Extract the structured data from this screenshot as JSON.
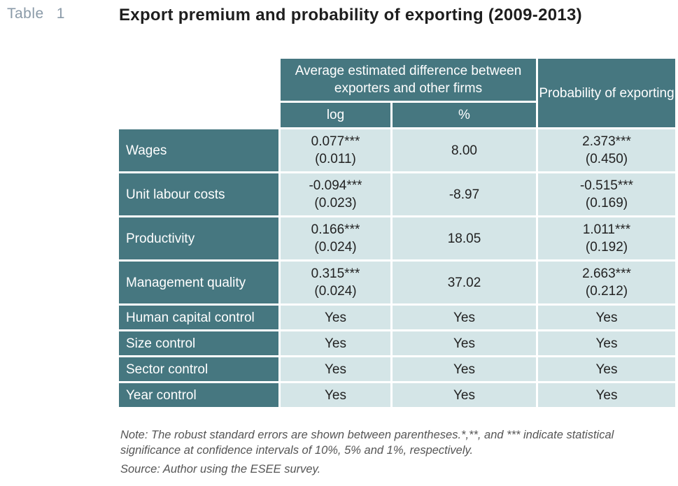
{
  "table_label": "Table",
  "table_number": "1",
  "title": "Export premium and probability of exporting (2009-2013)",
  "header": {
    "avg_diff": "Average estimated difference between exporters and other firms",
    "prob": "Probability of exporting",
    "log": "log",
    "pct": "%"
  },
  "rows": [
    {
      "label": "Wages",
      "log": "0.077***",
      "log_se": "(0.011)",
      "pct": "8.00",
      "prob": "2.373***",
      "prob_se": "(0.450)"
    },
    {
      "label": "Unit labour costs",
      "log": "-0.094***",
      "log_se": "(0.023)",
      "pct": "-8.97",
      "prob": "-0.515***",
      "prob_se": "(0.169)"
    },
    {
      "label": "Productivity",
      "log": "0.166***",
      "log_se": "(0.024)",
      "pct": "18.05",
      "prob": "1.011***",
      "prob_se": "(0.192)"
    },
    {
      "label": "Management quality",
      "log": "0.315***",
      "log_se": "(0.024)",
      "pct": "37.02",
      "prob": "2.663***",
      "prob_se": "(0.212)"
    }
  ],
  "controls": [
    {
      "label": "Human capital control",
      "log": "Yes",
      "pct": "Yes",
      "prob": "Yes"
    },
    {
      "label": "Size control",
      "log": "Yes",
      "pct": "Yes",
      "prob": "Yes"
    },
    {
      "label": "Sector control",
      "log": "Yes",
      "pct": "Yes",
      "prob": "Yes"
    },
    {
      "label": "Year control",
      "log": "Yes",
      "pct": "Yes",
      "prob": "Yes"
    }
  ],
  "note": "Note: The robust standard errors are shown between parentheses.*,**, and *** indicate statistical significance at confidence intervals of 10%, 5% and 1%, respectively.",
  "source": "Source: Author using the ESEE survey.",
  "colors": {
    "header": "#467780",
    "cell": "#d4e5e7"
  }
}
